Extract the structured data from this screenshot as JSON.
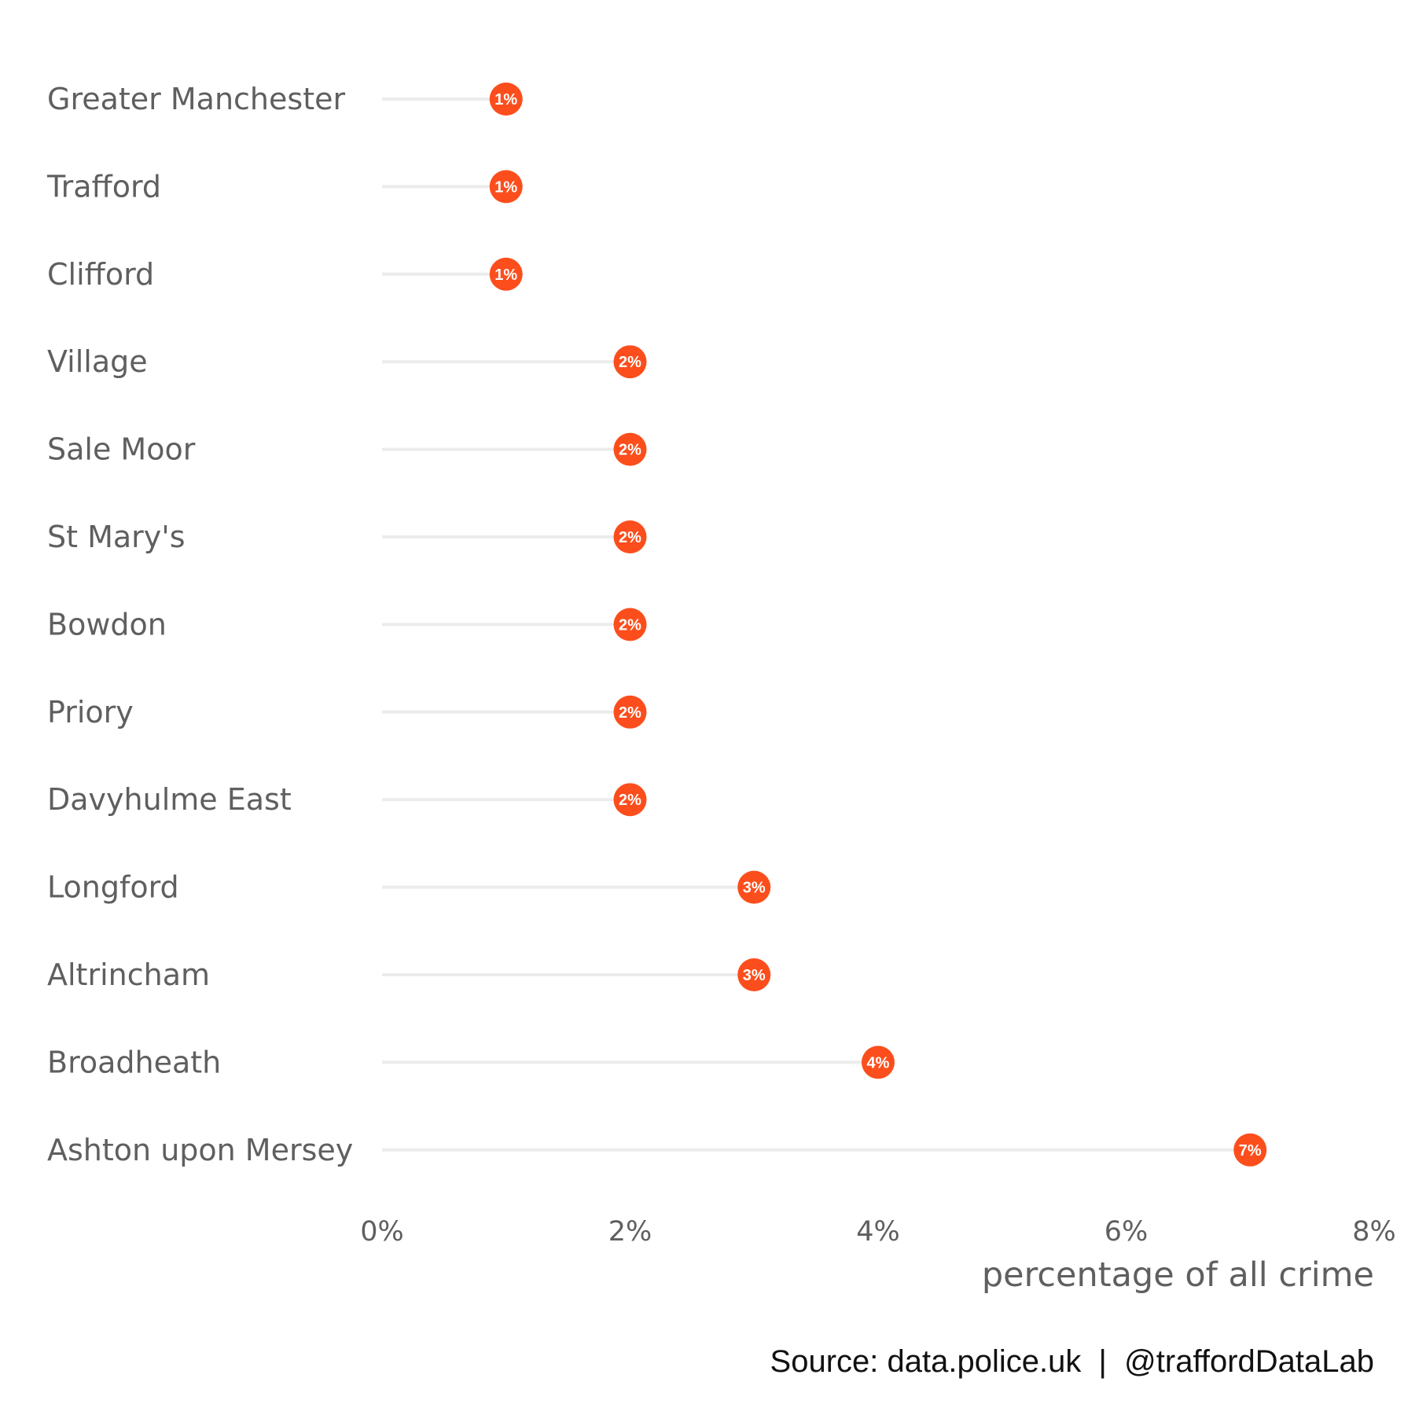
{
  "chart_data": {
    "type": "lollipop",
    "categories": [
      "Greater Manchester",
      "Trafford",
      "Clifford",
      "Village",
      "Sale Moor",
      "St Mary's",
      "Bowdon",
      "Priory",
      "Davyhulme East",
      "Longford",
      "Altrincham",
      "Broadheath",
      "Ashton upon Mersey"
    ],
    "values": [
      1,
      1,
      1,
      2,
      2,
      2,
      2,
      2,
      2,
      3,
      3,
      4,
      7
    ],
    "data_labels": [
      "1%",
      "1%",
      "1%",
      "2%",
      "2%",
      "2%",
      "2%",
      "2%",
      "2%",
      "3%",
      "3%",
      "4%",
      "7%"
    ],
    "xlabel": "percentage of all crime",
    "ylabel": "",
    "xlim": [
      0,
      8
    ],
    "x_ticks": [
      0,
      2,
      4,
      6,
      8
    ],
    "x_tick_labels": [
      "0%",
      "2%",
      "4%",
      "6%",
      "8%"
    ],
    "grid": false,
    "colors": {
      "point": "#fc4e1c",
      "stem": "#ececec",
      "text": "#5f5f5f"
    }
  },
  "caption": "Source: data.police.uk  |  @traffordDataLab"
}
